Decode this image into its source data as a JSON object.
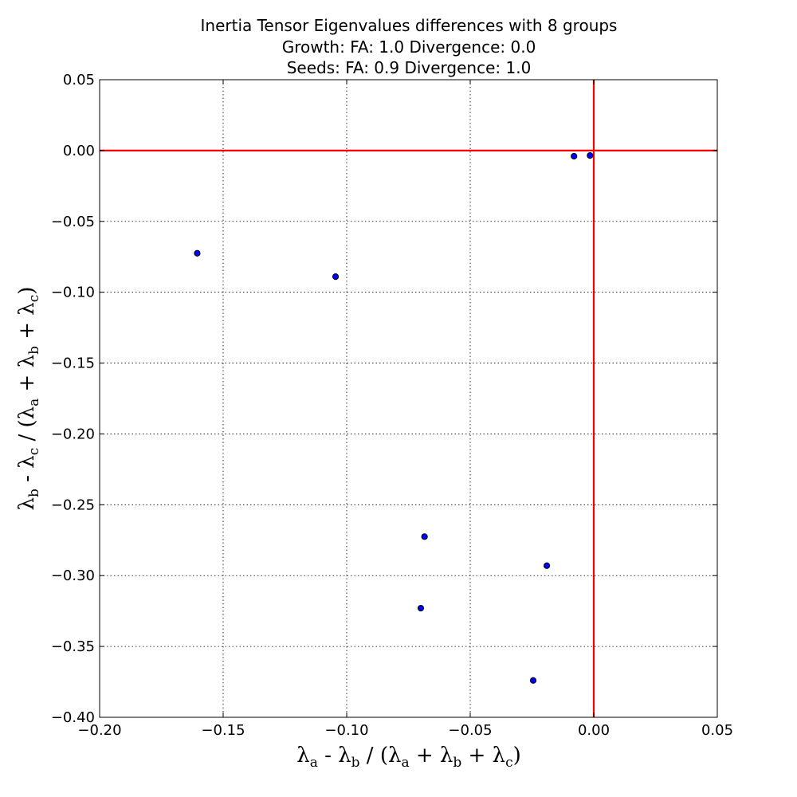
{
  "chart_data": {
    "type": "scatter",
    "title_lines": [
      "Inertia Tensor Eigenvalues differences with 8 groups",
      "Growth: FA: 1.0 Divergence: 0.0",
      "Seeds: FA: 0.9 Divergence: 1.0"
    ],
    "xlabel": "λa - λb / (λa + λb + λc)",
    "ylabel": "λb - λc / (λa + λb + λc)",
    "xlim": [
      -0.2,
      0.05
    ],
    "ylim": [
      -0.4,
      0.05
    ],
    "xticks": [
      -0.2,
      -0.15,
      -0.1,
      -0.05,
      0.0,
      0.05
    ],
    "yticks": [
      0.05,
      0.0,
      -0.05,
      -0.1,
      -0.15,
      -0.2,
      -0.25,
      -0.3,
      -0.35,
      -0.4
    ],
    "xtick_labels": [
      "−0.20",
      "−0.15",
      "−0.10",
      "−0.05",
      "0.00",
      "0.05"
    ],
    "ytick_labels": [
      "0.05",
      "0.00",
      "−0.05",
      "−0.10",
      "−0.15",
      "−0.20",
      "−0.25",
      "−0.30",
      "−0.35",
      "−0.40"
    ],
    "grid": true,
    "reference_lines": {
      "x": 0.0,
      "y": 0.0,
      "color": "#ff0000"
    },
    "marker_color": "#0000ff",
    "points": [
      {
        "x": -0.1605,
        "y": -0.0725
      },
      {
        "x": -0.1045,
        "y": -0.089
      },
      {
        "x": -0.008,
        "y": -0.004
      },
      {
        "x": -0.0015,
        "y": -0.0035
      },
      {
        "x": -0.0685,
        "y": -0.2725
      },
      {
        "x": -0.019,
        "y": -0.293
      },
      {
        "x": -0.07,
        "y": -0.323
      },
      {
        "x": -0.0245,
        "y": -0.374
      }
    ]
  }
}
